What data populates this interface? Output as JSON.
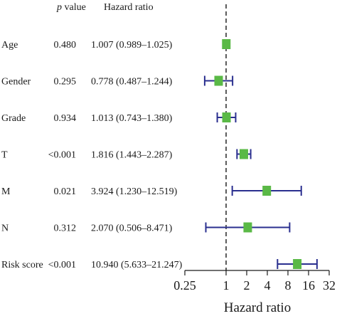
{
  "chart_data": {
    "type": "forest",
    "columns": {
      "p_prefix": "p",
      "p_suffix": " value",
      "hr_header": "Hazard ratio"
    },
    "rows": [
      {
        "label": "Age",
        "p": "0.480",
        "hr_text": "1.007 (0.989–1.025)",
        "hr": 1.007,
        "lower": 0.989,
        "upper": 1.025
      },
      {
        "label": "Gender",
        "p": "0.295",
        "hr_text": "0.778 (0.487–1.244)",
        "hr": 0.778,
        "lower": 0.487,
        "upper": 1.244
      },
      {
        "label": "Grade",
        "p": "0.934",
        "hr_text": "1.013 (0.743–1.380)",
        "hr": 1.013,
        "lower": 0.743,
        "upper": 1.38
      },
      {
        "label": "T",
        "p": "<0.001",
        "hr_text": "1.816 (1.443–2.287)",
        "hr": 1.816,
        "lower": 1.443,
        "upper": 2.287
      },
      {
        "label": "M",
        "p": "0.021",
        "hr_text": "3.924 (1.230–12.519)",
        "hr": 3.924,
        "lower": 1.23,
        "upper": 12.519
      },
      {
        "label": "N",
        "p": "0.312",
        "hr_text": "2.070 (0.506–8.471)",
        "hr": 2.07,
        "lower": 0.506,
        "upper": 8.471
      },
      {
        "label": "Risk score",
        "p": "<0.001",
        "hr_text": "10.940 (5.633–21.247)",
        "hr": 10.94,
        "lower": 5.633,
        "upper": 21.247
      }
    ],
    "x_axis": {
      "label": "Hazard ratio",
      "scale": "log2",
      "ticks": [
        0.25,
        1,
        2,
        4,
        8,
        16,
        32
      ],
      "tick_labels": [
        "0.25",
        "1",
        "2",
        "4",
        "8",
        "16",
        "32"
      ],
      "range": [
        0.25,
        32
      ]
    },
    "reference_line": 1,
    "colors": {
      "box": "#5ab946",
      "ci": "#2a2f8f",
      "axis": "#1a1a1a",
      "reference": "#333333"
    }
  }
}
